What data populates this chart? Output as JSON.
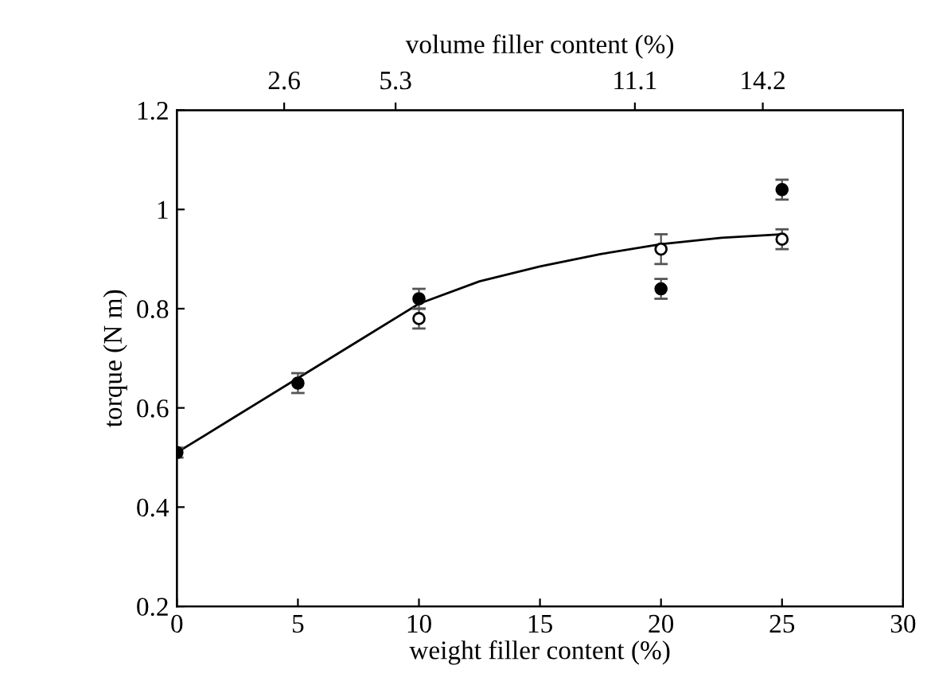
{
  "chart_data": {
    "type": "scatter",
    "xlabel": "weight filler content (%)",
    "ylabel": "torque (N m)",
    "x2label": "volume filler content (%)",
    "xlim": [
      0,
      30
    ],
    "xticks": [
      0,
      5,
      10,
      15,
      20,
      25,
      30
    ],
    "ylim": [
      0.2,
      1.2
    ],
    "yticks": [
      0.2,
      0.4,
      0.6,
      0.8,
      1,
      1.2
    ],
    "x2lim": [
      0,
      17.6
    ],
    "x2ticks": [
      2.6,
      5.3,
      11.1,
      14.2
    ],
    "grid": false,
    "legend": false,
    "series": [
      {
        "marker": "circle",
        "color": "#000000",
        "x": [
          0,
          5,
          10,
          20,
          25
        ],
        "values": [
          0.51,
          0.65,
          0.82,
          0.84,
          1.04
        ],
        "errors": [
          0.01,
          0.02,
          0.02,
          0.02,
          0.02
        ]
      },
      {
        "marker": "circle",
        "color": "#ffffff",
        "x": [
          10,
          20,
          25
        ],
        "values": [
          0.78,
          0.92,
          0.94
        ],
        "errors": [
          0.02,
          0.03,
          0.02
        ]
      },
      {
        "type": "line",
        "marker": "none",
        "line_style": "solid",
        "color": "#000000",
        "x": [
          0,
          2.5,
          5,
          7.5,
          10,
          12.5,
          15,
          17.5,
          20,
          22.5,
          25
        ],
        "values": [
          0.51,
          0.585,
          0.66,
          0.735,
          0.81,
          0.855,
          0.885,
          0.91,
          0.93,
          0.943,
          0.95
        ]
      }
    ]
  }
}
